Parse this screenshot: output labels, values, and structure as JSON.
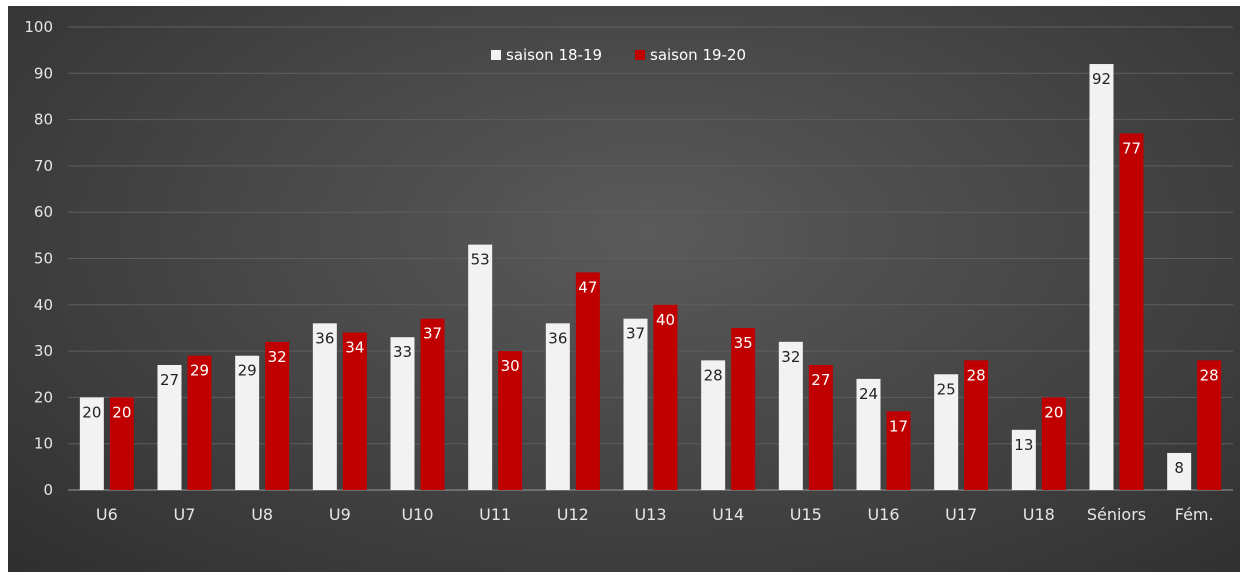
{
  "chart_data": {
    "type": "bar",
    "categories": [
      "U6",
      "U7",
      "U8",
      "U9",
      "U10",
      "U11",
      "U12",
      "U13",
      "U14",
      "U15",
      "U16",
      "U17",
      "U18",
      "Séniors",
      "Fém."
    ],
    "series": [
      {
        "name": "saison 18-19",
        "values": [
          20,
          27,
          29,
          36,
          33,
          53,
          36,
          37,
          28,
          32,
          24,
          25,
          13,
          92,
          8
        ]
      },
      {
        "name": "saison 19-20",
        "values": [
          20,
          29,
          32,
          34,
          37,
          30,
          47,
          40,
          35,
          27,
          17,
          28,
          20,
          77,
          28
        ]
      }
    ],
    "ylim": [
      0,
      100
    ],
    "yticks": [
      0,
      10,
      20,
      30,
      40,
      50,
      60,
      70,
      80,
      90,
      100
    ],
    "grid": true,
    "legend_position": "top-center",
    "data_labels": true,
    "colors": {
      "series_1": "#f2f2f2",
      "series_2": "#c00000",
      "background": "#474747",
      "gridline": "#5e5e5e",
      "axis_text": "#e6e6e6"
    }
  }
}
